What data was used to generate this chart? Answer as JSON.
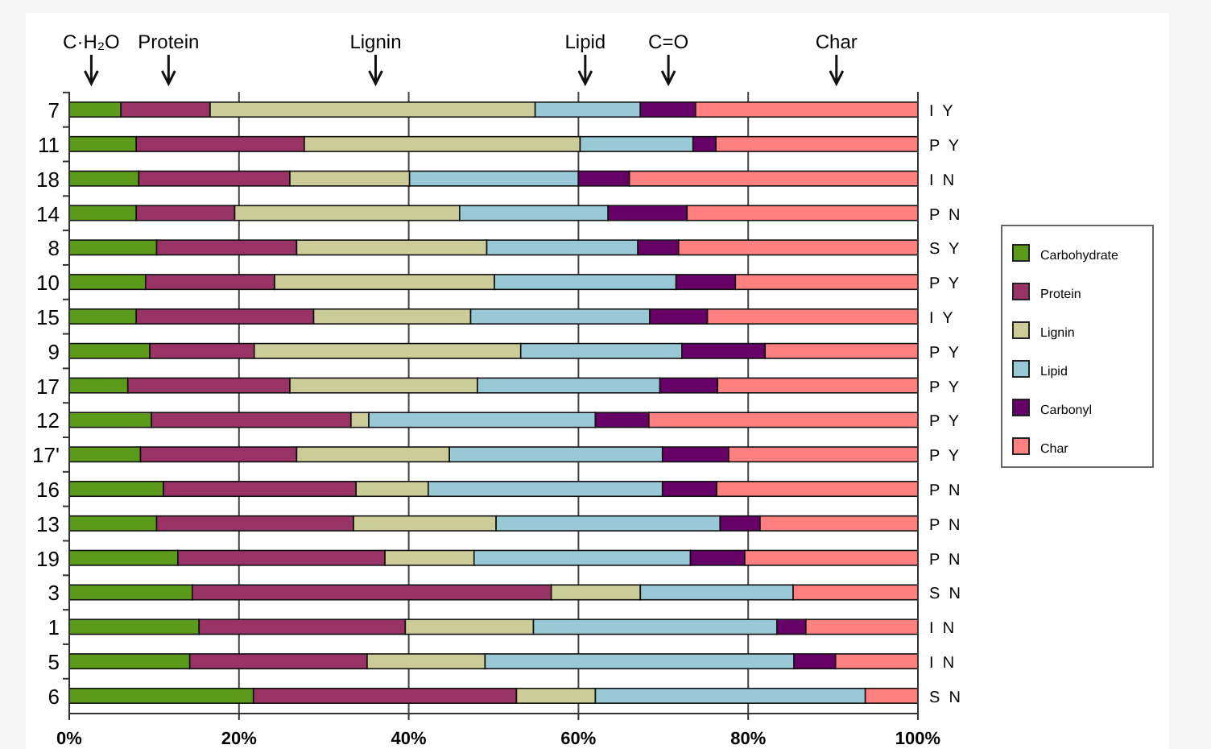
{
  "chart_data": {
    "type": "bar",
    "orientation": "horizontal",
    "stacked": true,
    "categories": [
      "7",
      "11",
      "18",
      "14",
      "8",
      "10",
      "15",
      "9",
      "17",
      "12",
      "17'",
      "16",
      "13",
      "19",
      "3",
      "1",
      "5",
      "6"
    ],
    "series": [
      {
        "name": "Carbohydrate",
        "color": "#5c9a1c",
        "values": [
          6.1,
          7.9,
          8.2,
          7.9,
          10.3,
          9.0,
          7.9,
          9.5,
          6.9,
          9.7,
          8.4,
          11.1,
          10.3,
          12.8,
          14.5,
          15.3,
          14.2,
          21.7
        ]
      },
      {
        "name": "Protein",
        "color": "#993366",
        "values": [
          10.5,
          19.8,
          17.8,
          11.6,
          16.5,
          15.2,
          20.9,
          12.3,
          19.1,
          23.5,
          18.4,
          22.7,
          23.2,
          24.4,
          42.3,
          24.3,
          20.9,
          31.0
        ]
      },
      {
        "name": "Lignin",
        "color": "#cccc99",
        "values": [
          38.3,
          32.5,
          14.1,
          26.5,
          22.4,
          25.9,
          18.5,
          31.4,
          22.1,
          2.1,
          18.0,
          8.5,
          16.8,
          10.5,
          10.5,
          15.1,
          13.9,
          9.3
        ]
      },
      {
        "name": "Lipid",
        "color": "#99c9d6",
        "values": [
          12.4,
          13.3,
          19.9,
          17.5,
          17.8,
          21.4,
          21.1,
          19.0,
          21.5,
          26.7,
          25.1,
          27.6,
          26.4,
          25.5,
          18.0,
          28.7,
          36.4,
          31.8
        ]
      },
      {
        "name": "Carbonyl",
        "color": "#660066",
        "values": [
          6.5,
          2.7,
          6.0,
          9.3,
          4.8,
          7.0,
          6.8,
          9.8,
          6.8,
          6.3,
          7.8,
          6.4,
          4.7,
          6.4,
          0,
          3.4,
          4.9,
          0
        ]
      },
      {
        "name": "Char",
        "color": "#ff8080",
        "values": [
          26.2,
          23.8,
          34.0,
          27.2,
          28.2,
          21.5,
          24.8,
          18.0,
          23.6,
          31.7,
          22.3,
          23.7,
          18.6,
          20.4,
          14.7,
          13.2,
          9.7,
          6.2
        ]
      }
    ],
    "xlim": [
      0,
      100
    ],
    "xticks": [
      {
        "value": 0,
        "label": "0%"
      },
      {
        "value": 20,
        "label": "20%"
      },
      {
        "value": 40,
        "label": "40%"
      },
      {
        "value": 60,
        "label": "60%"
      },
      {
        "value": 80,
        "label": "80%"
      },
      {
        "value": 100,
        "label": "100%"
      }
    ],
    "grid": "x",
    "legend": "right",
    "annotations": [
      "C·H₂O",
      "Protein",
      "Lignin",
      "Lipid",
      "C=O",
      "Char",
      "I Y",
      "P Y",
      "I N",
      "P N",
      "S Y",
      "P Y",
      "I Y",
      "P Y",
      "P Y",
      "P Y",
      "P Y",
      "P N",
      "P N",
      "P N",
      "S N",
      "I N",
      "I N",
      "S N"
    ]
  }
}
